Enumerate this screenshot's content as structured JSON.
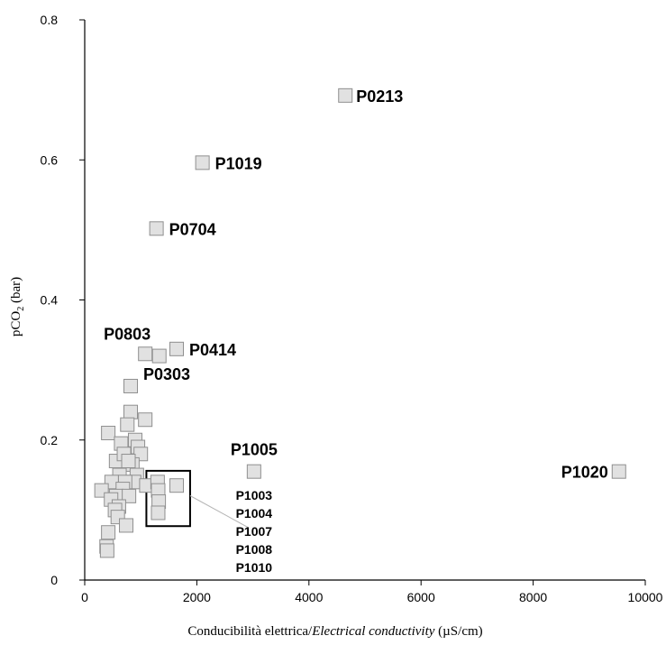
{
  "chart_data": {
    "type": "scatter",
    "xlabel_main": "Conducibilità elettrica/",
    "xlabel_italic": "Electrical conductivity",
    "xlabel_unit": " (µS/cm)",
    "ylabel_main": "pCO",
    "ylabel_sub": "2",
    "ylabel_unit": " (bar)",
    "xlim": [
      0,
      10000
    ],
    "ylim": [
      0,
      0.8
    ],
    "x_ticks": [
      0,
      2000,
      4000,
      6000,
      8000,
      10000
    ],
    "y_ticks": [
      0,
      0.2,
      0.4,
      0.6,
      0.8
    ],
    "x_tick_labels": [
      "0",
      "2000",
      "4000",
      "6000",
      "8000",
      "10000"
    ],
    "y_tick_labels": [
      "0",
      "0.2",
      "0.4",
      "0.6",
      "0.8"
    ],
    "labeled_points": [
      {
        "label": "P0213",
        "x": 4650,
        "y": 0.692
      },
      {
        "label": "P1019",
        "x": 2100,
        "y": 0.596
      },
      {
        "label": "P0704",
        "x": 1280,
        "y": 0.502
      },
      {
        "label": "P0803",
        "x": 1080,
        "y": 0.323
      },
      {
        "label": "P0414",
        "x": 1640,
        "y": 0.33
      },
      {
        "label": "P0303",
        "x": 820,
        "y": 0.277
      },
      {
        "label": "P1005",
        "x": 3020,
        "y": 0.155
      },
      {
        "label": "P1020",
        "x": 9530,
        "y": 0.155
      }
    ],
    "cluster_points": [
      {
        "x": 1330,
        "y": 0.32
      },
      {
        "x": 420,
        "y": 0.21
      },
      {
        "x": 820,
        "y": 0.24
      },
      {
        "x": 1080,
        "y": 0.229
      },
      {
        "x": 760,
        "y": 0.222
      },
      {
        "x": 900,
        "y": 0.2
      },
      {
        "x": 650,
        "y": 0.195
      },
      {
        "x": 950,
        "y": 0.19
      },
      {
        "x": 1000,
        "y": 0.18
      },
      {
        "x": 560,
        "y": 0.17
      },
      {
        "x": 700,
        "y": 0.18
      },
      {
        "x": 850,
        "y": 0.165
      },
      {
        "x": 780,
        "y": 0.17
      },
      {
        "x": 930,
        "y": 0.15
      },
      {
        "x": 620,
        "y": 0.15
      },
      {
        "x": 880,
        "y": 0.14
      },
      {
        "x": 720,
        "y": 0.14
      },
      {
        "x": 480,
        "y": 0.14
      },
      {
        "x": 300,
        "y": 0.128
      },
      {
        "x": 680,
        "y": 0.13
      },
      {
        "x": 560,
        "y": 0.12
      },
      {
        "x": 790,
        "y": 0.12
      },
      {
        "x": 470,
        "y": 0.115
      },
      {
        "x": 610,
        "y": 0.105
      },
      {
        "x": 540,
        "y": 0.1
      },
      {
        "x": 590,
        "y": 0.09
      },
      {
        "x": 740,
        "y": 0.078
      },
      {
        "x": 420,
        "y": 0.068
      },
      {
        "x": 390,
        "y": 0.048
      },
      {
        "x": 400,
        "y": 0.042
      },
      {
        "x": 1100,
        "y": 0.135
      },
      {
        "x": 1300,
        "y": 0.14
      },
      {
        "x": 1310,
        "y": 0.128
      },
      {
        "x": 1320,
        "y": 0.112
      },
      {
        "x": 1310,
        "y": 0.096
      },
      {
        "x": 1640,
        "y": 0.135
      }
    ],
    "box": {
      "x0": 1100,
      "x1": 1880,
      "y0": 0.077,
      "y1": 0.156
    },
    "box_labels": [
      "P1003",
      "P1004",
      "P1007",
      "P1008",
      "P1010"
    ]
  }
}
